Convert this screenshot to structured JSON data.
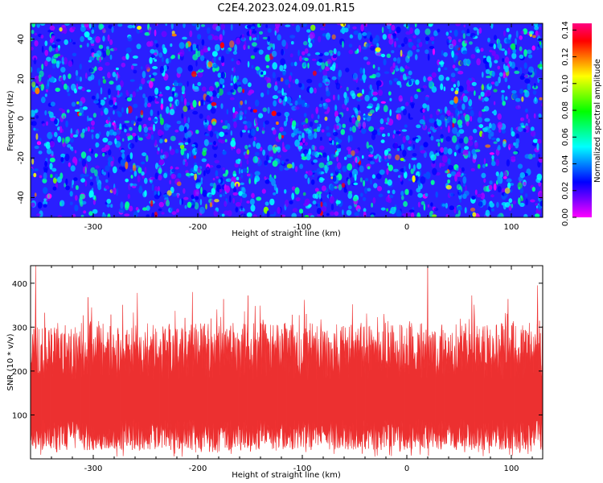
{
  "title": "C2E4.2023.024.09.01.R15",
  "chart_data": [
    {
      "type": "heatmap",
      "title": "C2E4.2023.024.09.01.R15",
      "xlabel": "Height of straight line (km)",
      "ylabel": "Frequency (Hz)",
      "xlim": [
        -360,
        130
      ],
      "ylim": [
        -50,
        48
      ],
      "x_ticks": [
        -300,
        -200,
        -100,
        0,
        100
      ],
      "y_ticks": [
        -40,
        -20,
        0,
        20,
        40
      ],
      "colorbar": {
        "label": "Normalized spectral amplitude",
        "range": [
          0.0,
          0.145
        ],
        "ticks": [
          "0.00",
          "0.02",
          "0.04",
          "0.06",
          "0.08",
          "0.10",
          "0.12",
          "0.14"
        ],
        "colormap": [
          "#ff00ff",
          "#7a00ff",
          "#0000ff",
          "#0080ff",
          "#00ffff",
          "#00ff80",
          "#00ff00",
          "#80ff00",
          "#ffff00",
          "#ff8000",
          "#ff0000",
          "#ff0080"
        ]
      },
      "background_color": "#2a1fff",
      "speckle_mean_amplitude": 0.03,
      "speckle_max_amplitude": 0.14
    },
    {
      "type": "area",
      "xlabel": "Height of straight line (km)",
      "ylabel": "SNR (10 * v/v)",
      "xlim": [
        -360,
        130
      ],
      "ylim": [
        0,
        440
      ],
      "x_ticks": [
        -300,
        -200,
        -100,
        0,
        100
      ],
      "y_ticks": [
        100,
        200,
        300,
        400
      ],
      "color": "#f03232",
      "floor_typical_range": [
        20,
        90
      ],
      "envelope_typical_range": [
        240,
        330
      ],
      "peaks": [
        {
          "x": -355,
          "y": 440
        },
        {
          "x": -305,
          "y": 368
        },
        {
          "x": -258,
          "y": 378
        },
        {
          "x": -205,
          "y": 380
        },
        {
          "x": -152,
          "y": 372
        },
        {
          "x": -145,
          "y": 348
        },
        {
          "x": -98,
          "y": 362
        },
        {
          "x": -52,
          "y": 352
        },
        {
          "x": 20,
          "y": 438
        },
        {
          "x": 62,
          "y": 372
        },
        {
          "x": 97,
          "y": 364
        },
        {
          "x": 125,
          "y": 395
        }
      ]
    }
  ]
}
